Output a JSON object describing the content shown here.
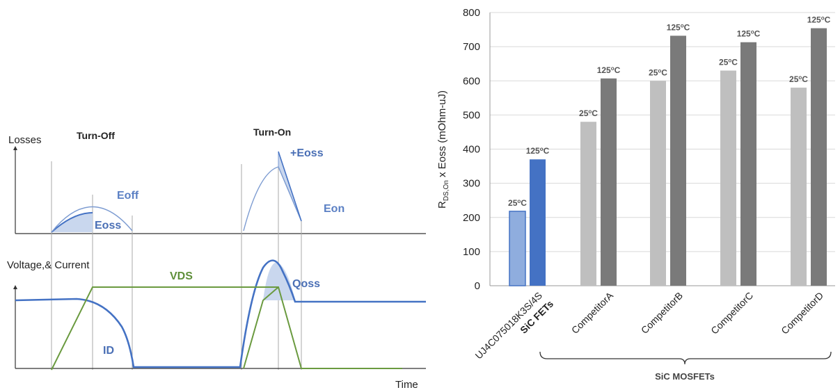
{
  "waveform": {
    "losses_label": "Losses",
    "turn_off_label": "Turn-Off",
    "turn_on_label": "Turn-On",
    "eoff_label": "Eoff",
    "eoss_label": "Eoss",
    "plus_eoss_label": "+Eoss",
    "eon_label": "Eon",
    "vi_label": "Voltage,& Current",
    "vds_label": "VDS",
    "id_label": "ID",
    "qoss_label": "Qoss",
    "time_label": "Time",
    "colors": {
      "current": "#4472c4",
      "voltage": "#6a9a3f",
      "fill": "#c9d7ee"
    }
  },
  "chart_data": {
    "type": "bar",
    "ylabel_main": "R",
    "ylabel_sub": "DS,On",
    "ylabel_rest": " x Eoss (mOhm-uJ)",
    "ylim": [
      0,
      800
    ],
    "yticks": [
      "0",
      "100",
      "200",
      "300",
      "400",
      "500",
      "600",
      "700",
      "800"
    ],
    "categories": [
      {
        "label": "UJ4C075018K3S/4S",
        "sublabel": "SiC FETs"
      },
      {
        "label": "CompetitorA",
        "sublabel": ""
      },
      {
        "label": "CompetitorB",
        "sublabel": ""
      },
      {
        "label": "CompetitorC",
        "sublabel": ""
      },
      {
        "label": "CompetitorD",
        "sublabel": ""
      }
    ],
    "series": [
      {
        "name": "25°C",
        "values": [
          218,
          480,
          600,
          630,
          580
        ]
      },
      {
        "name": "125°C",
        "values": [
          370,
          607,
          732,
          713,
          754
        ]
      }
    ],
    "bar_labels": [
      "25oC",
      "125oC"
    ],
    "group_label": "SiC MOSFETs",
    "colors": {
      "sic_25": "#8fadde",
      "sic_125": "#4472c4",
      "comp_25": "#bfbfbf",
      "comp_125": "#7a7a7a"
    }
  }
}
